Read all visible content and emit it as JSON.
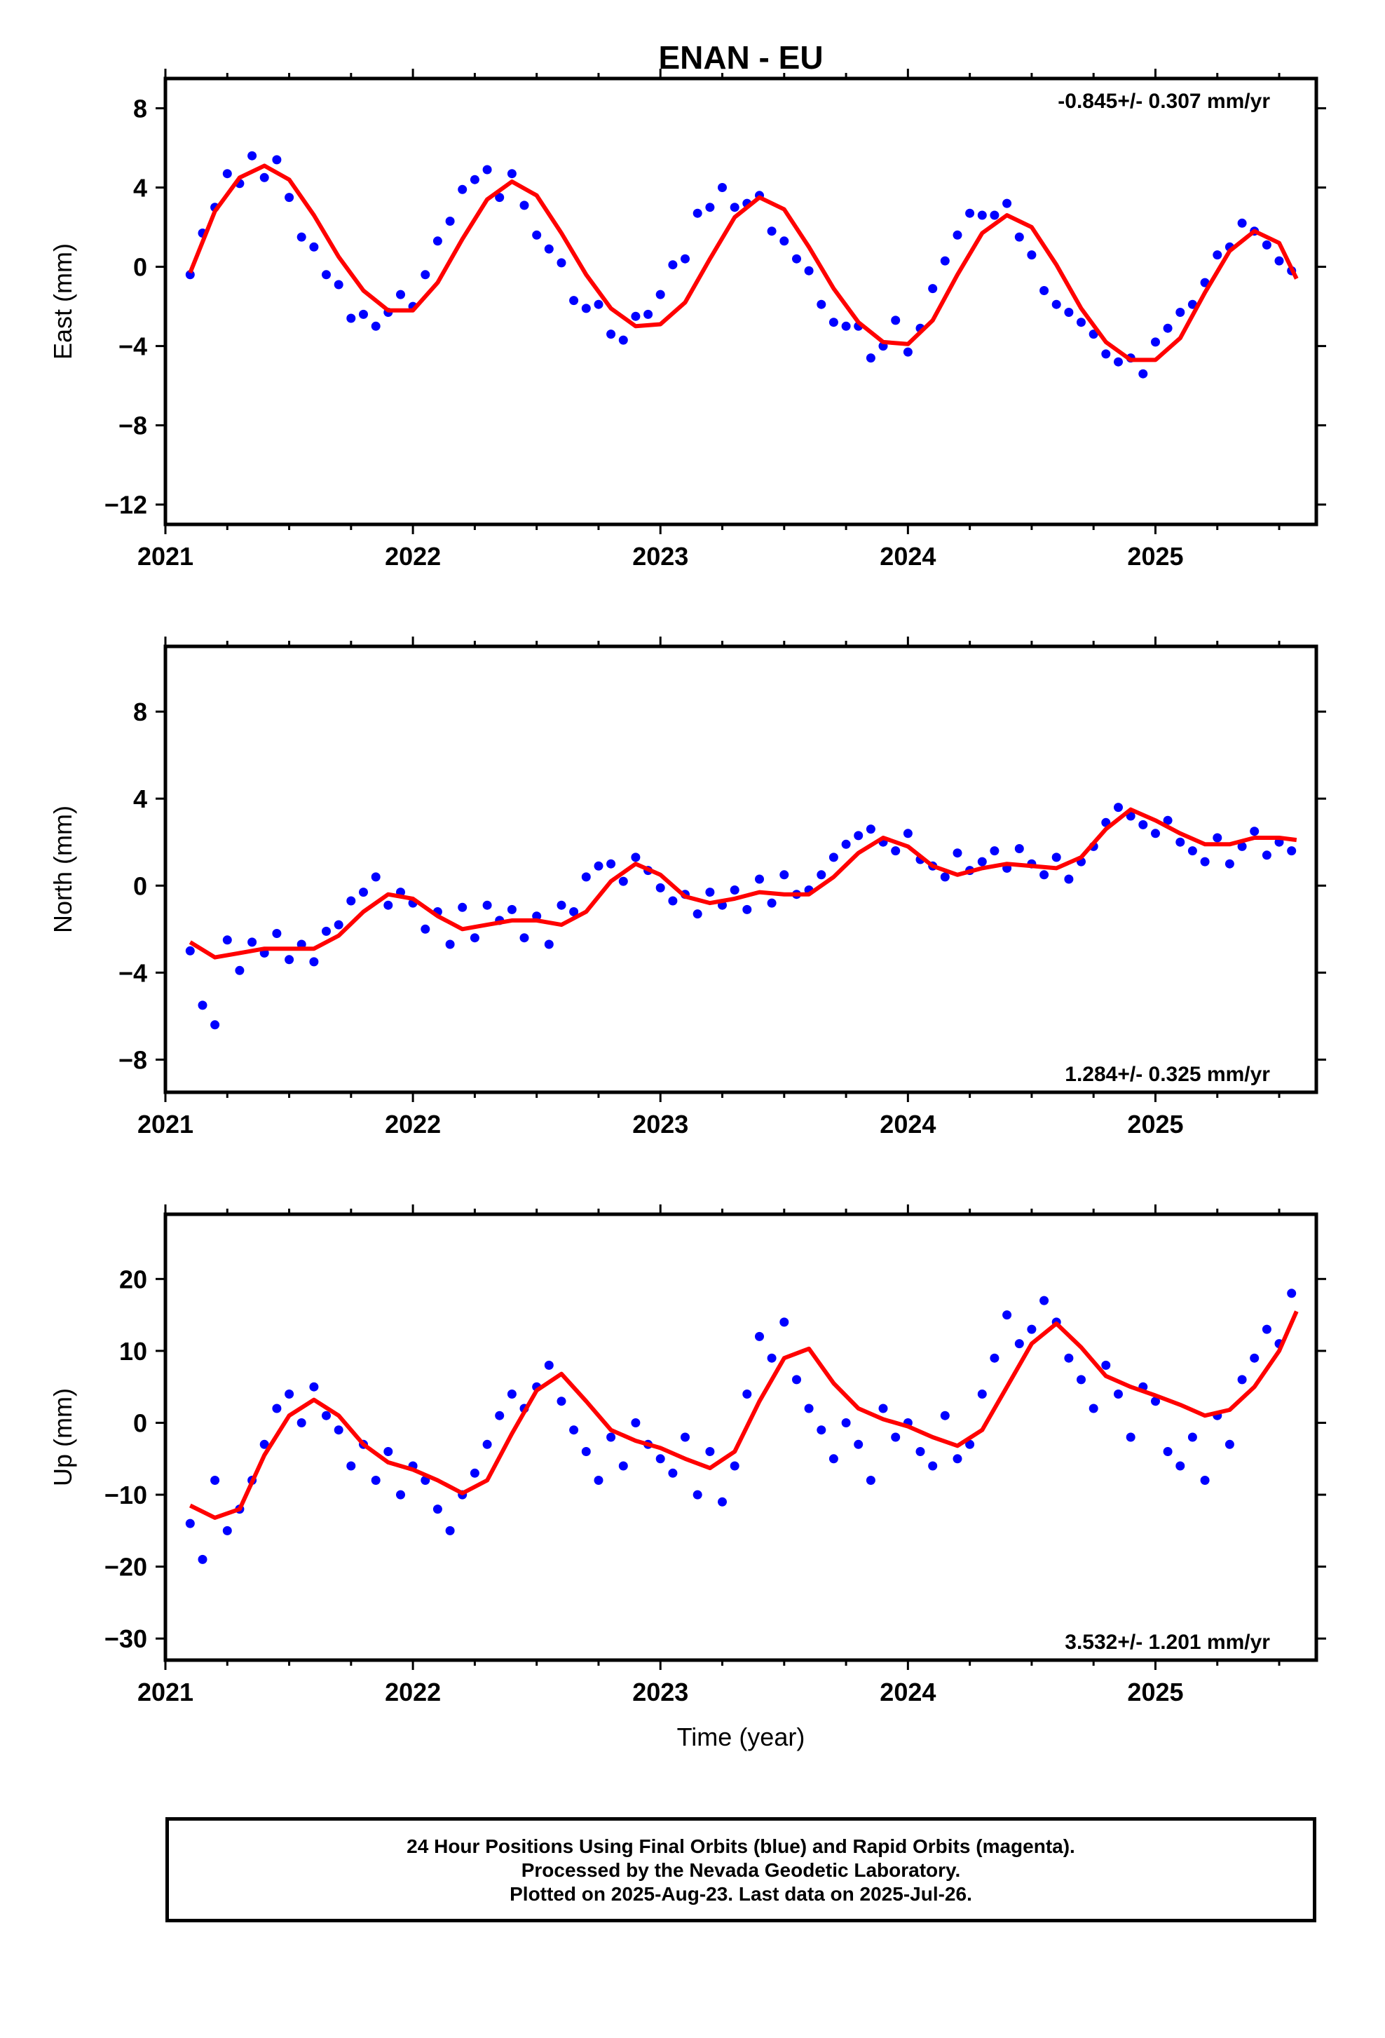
{
  "title": "ENAN - EU",
  "footer": {
    "line1": "24 Hour Positions Using Final Orbits (blue) and Rapid Orbits (magenta).",
    "line2": "Processed by the Nevada Geodetic Laboratory.",
    "line3": "Plotted on 2025-Aug-23. Last data on 2025-Jul-26."
  },
  "colors": {
    "final_orbits": "#0000ff",
    "model_fit": "#ff0000",
    "frame": "#000000"
  },
  "chart_data": [
    {
      "type": "scatter",
      "ylabel": "East (mm)",
      "rate_label": "-0.845+/- 0.307 mm/yr",
      "rate_placement": "top-right",
      "xlim": [
        2021.0,
        2025.65
      ],
      "ylim": [
        -13,
        9.5
      ],
      "xticks": [
        "2021",
        "2022",
        "2023",
        "2024",
        "2025"
      ],
      "yticks": [
        8,
        4,
        0,
        -4,
        -8,
        -12
      ],
      "ytick_labels": [
        "8",
        "4",
        "0",
        "−4",
        "−8",
        "−12"
      ],
      "grid": false,
      "series": [
        {
          "kind": "points",
          "x": [
            2021.1,
            2021.15,
            2021.2,
            2021.25,
            2021.3,
            2021.35,
            2021.4,
            2021.45,
            2021.5,
            2021.55,
            2021.6,
            2021.65,
            2021.7,
            2021.75,
            2021.8,
            2021.85,
            2021.9,
            2021.95,
            2022.0,
            2022.05,
            2022.1,
            2022.15,
            2022.2,
            2022.25,
            2022.3,
            2022.35,
            2022.4,
            2022.45,
            2022.5,
            2022.55,
            2022.6,
            2022.65,
            2022.7,
            2022.75,
            2022.8,
            2022.85,
            2022.9,
            2022.95,
            2023.0,
            2023.05,
            2023.1,
            2023.15,
            2023.2,
            2023.25,
            2023.3,
            2023.35,
            2023.4,
            2023.45,
            2023.5,
            2023.55,
            2023.6,
            2023.65,
            2023.7,
            2023.75,
            2023.8,
            2023.85,
            2023.9,
            2023.95,
            2024.0,
            2024.05,
            2024.1,
            2024.15,
            2024.2,
            2024.25,
            2024.3,
            2024.35,
            2024.4,
            2024.45,
            2024.5,
            2024.55,
            2024.6,
            2024.65,
            2024.7,
            2024.75,
            2024.8,
            2024.85,
            2024.9,
            2024.95,
            2025.0,
            2025.05,
            2025.1,
            2025.15,
            2025.2,
            2025.25,
            2025.3,
            2025.35,
            2025.4,
            2025.45,
            2025.5,
            2025.55
          ],
          "y": [
            -0.4,
            1.7,
            3.0,
            4.7,
            4.2,
            5.6,
            4.5,
            5.4,
            3.5,
            1.5,
            1.0,
            -0.4,
            -0.9,
            -2.6,
            -2.4,
            -3.0,
            -2.3,
            -1.4,
            -2.0,
            -0.4,
            1.3,
            2.3,
            3.9,
            4.4,
            4.9,
            3.5,
            4.7,
            3.1,
            1.6,
            0.9,
            0.2,
            -1.7,
            -2.1,
            -1.9,
            -3.4,
            -3.7,
            -2.5,
            -2.4,
            -1.4,
            0.1,
            0.4,
            2.7,
            3.0,
            4.0,
            3.0,
            3.2,
            3.6,
            1.8,
            1.3,
            0.4,
            -0.2,
            -1.9,
            -2.8,
            -3.0,
            -3.0,
            -4.6,
            -4.0,
            -2.7,
            -4.3,
            -3.1,
            -1.1,
            0.3,
            1.6,
            2.7,
            2.6,
            2.6,
            3.2,
            1.5,
            0.6,
            -1.2,
            -1.9,
            -2.3,
            -2.8,
            -3.4,
            -4.4,
            -4.8,
            -4.6,
            -5.4,
            -3.8,
            -3.1,
            -2.3,
            -1.9,
            -0.8,
            0.6,
            1.0,
            2.2,
            1.8,
            1.1,
            0.3,
            -0.2
          ]
        },
        {
          "kind": "fit",
          "x": [
            2021.1,
            2021.2,
            2021.3,
            2021.4,
            2021.5,
            2021.6,
            2021.7,
            2021.8,
            2021.9,
            2022.0,
            2022.1,
            2022.2,
            2022.3,
            2022.4,
            2022.5,
            2022.6,
            2022.7,
            2022.8,
            2022.9,
            2023.0,
            2023.1,
            2023.2,
            2023.3,
            2023.4,
            2023.5,
            2023.6,
            2023.7,
            2023.8,
            2023.9,
            2024.0,
            2024.1,
            2024.2,
            2024.3,
            2024.4,
            2024.5,
            2024.6,
            2024.7,
            2024.8,
            2024.9,
            2025.0,
            2025.1,
            2025.2,
            2025.3,
            2025.4,
            2025.5,
            2025.57
          ],
          "y": [
            -0.3,
            2.8,
            4.5,
            5.1,
            4.4,
            2.6,
            0.5,
            -1.2,
            -2.2,
            -2.2,
            -0.8,
            1.4,
            3.4,
            4.3,
            3.6,
            1.7,
            -0.4,
            -2.1,
            -3.0,
            -2.9,
            -1.8,
            0.4,
            2.5,
            3.5,
            2.9,
            1.0,
            -1.1,
            -2.8,
            -3.8,
            -3.9,
            -2.7,
            -0.4,
            1.7,
            2.6,
            2.0,
            0.1,
            -2.1,
            -3.8,
            -4.7,
            -4.7,
            -3.6,
            -1.3,
            0.8,
            1.8,
            1.2,
            -0.6
          ]
        }
      ]
    },
    {
      "type": "scatter",
      "ylabel": "North (mm)",
      "rate_label": "1.284+/- 0.325 mm/yr",
      "rate_placement": "bottom-right",
      "xlim": [
        2021.0,
        2025.65
      ],
      "ylim": [
        -9.5,
        11
      ],
      "xticks": [
        "2021",
        "2022",
        "2023",
        "2024",
        "2025"
      ],
      "yticks": [
        8,
        4,
        0,
        -4,
        -8
      ],
      "ytick_labels": [
        "8",
        "4",
        "0",
        "−4",
        "−8"
      ],
      "grid": false,
      "series": [
        {
          "kind": "points",
          "x": [
            2021.1,
            2021.15,
            2021.2,
            2021.25,
            2021.3,
            2021.35,
            2021.4,
            2021.45,
            2021.5,
            2021.55,
            2021.6,
            2021.65,
            2021.7,
            2021.75,
            2021.8,
            2021.85,
            2021.9,
            2021.95,
            2022.0,
            2022.05,
            2022.1,
            2022.15,
            2022.2,
            2022.25,
            2022.3,
            2022.35,
            2022.4,
            2022.45,
            2022.5,
            2022.55,
            2022.6,
            2022.65,
            2022.7,
            2022.75,
            2022.8,
            2022.85,
            2022.9,
            2022.95,
            2023.0,
            2023.05,
            2023.1,
            2023.15,
            2023.2,
            2023.25,
            2023.3,
            2023.35,
            2023.4,
            2023.45,
            2023.5,
            2023.55,
            2023.6,
            2023.65,
            2023.7,
            2023.75,
            2023.8,
            2023.85,
            2023.9,
            2023.95,
            2024.0,
            2024.05,
            2024.1,
            2024.15,
            2024.2,
            2024.25,
            2024.3,
            2024.35,
            2024.4,
            2024.45,
            2024.5,
            2024.55,
            2024.6,
            2024.65,
            2024.7,
            2024.75,
            2024.8,
            2024.85,
            2024.9,
            2024.95,
            2025.0,
            2025.05,
            2025.1,
            2025.15,
            2025.2,
            2025.25,
            2025.3,
            2025.35,
            2025.4,
            2025.45,
            2025.5,
            2025.55
          ],
          "y": [
            -3.0,
            -5.5,
            -6.4,
            -2.5,
            -3.9,
            -2.6,
            -3.1,
            -2.2,
            -3.4,
            -2.7,
            -3.5,
            -2.1,
            -1.8,
            -0.7,
            -0.3,
            0.4,
            -0.9,
            -0.3,
            -0.8,
            -2.0,
            -1.2,
            -2.7,
            -1.0,
            -2.4,
            -0.9,
            -1.6,
            -1.1,
            -2.4,
            -1.4,
            -2.7,
            -0.9,
            -1.2,
            0.4,
            0.9,
            1.0,
            0.2,
            1.3,
            0.7,
            -0.1,
            -0.7,
            -0.4,
            -1.3,
            -0.3,
            -0.9,
            -0.2,
            -1.1,
            0.3,
            -0.8,
            0.5,
            -0.4,
            -0.2,
            0.5,
            1.3,
            1.9,
            2.3,
            2.6,
            2.0,
            1.6,
            2.4,
            1.2,
            0.9,
            0.4,
            1.5,
            0.7,
            1.1,
            1.6,
            0.8,
            1.7,
            1.0,
            0.5,
            1.3,
            0.3,
            1.1,
            1.8,
            2.9,
            3.6,
            3.2,
            2.8,
            2.4,
            3.0,
            2.0,
            1.6,
            1.1,
            2.2,
            1.0,
            1.8,
            2.5,
            1.4,
            2.0,
            1.6
          ]
        },
        {
          "kind": "fit",
          "x": [
            2021.1,
            2021.2,
            2021.3,
            2021.4,
            2021.5,
            2021.6,
            2021.7,
            2021.8,
            2021.9,
            2022.0,
            2022.1,
            2022.2,
            2022.3,
            2022.4,
            2022.5,
            2022.6,
            2022.7,
            2022.8,
            2022.9,
            2023.0,
            2023.1,
            2023.2,
            2023.3,
            2023.4,
            2023.5,
            2023.6,
            2023.7,
            2023.8,
            2023.9,
            2024.0,
            2024.1,
            2024.2,
            2024.3,
            2024.4,
            2024.5,
            2024.6,
            2024.7,
            2024.8,
            2024.9,
            2025.0,
            2025.1,
            2025.2,
            2025.3,
            2025.4,
            2025.5,
            2025.57
          ],
          "y": [
            -2.6,
            -3.3,
            -3.1,
            -2.9,
            -2.9,
            -2.9,
            -2.3,
            -1.2,
            -0.4,
            -0.6,
            -1.4,
            -2.0,
            -1.8,
            -1.6,
            -1.6,
            -1.8,
            -1.2,
            0.2,
            1.0,
            0.5,
            -0.5,
            -0.8,
            -0.6,
            -0.3,
            -0.4,
            -0.4,
            0.4,
            1.5,
            2.2,
            1.8,
            0.9,
            0.5,
            0.8,
            1.0,
            0.9,
            0.8,
            1.3,
            2.6,
            3.5,
            3.0,
            2.4,
            1.9,
            1.9,
            2.2,
            2.2,
            2.1
          ]
        }
      ]
    },
    {
      "type": "scatter",
      "ylabel": "Up (mm)",
      "xlabel": "Time (year)",
      "rate_label": "3.532+/- 1.201 mm/yr",
      "rate_placement": "bottom-right",
      "xlim": [
        2021.0,
        2025.65
      ],
      "ylim": [
        -33,
        29
      ],
      "xticks": [
        "2021",
        "2022",
        "2023",
        "2024",
        "2025"
      ],
      "yticks": [
        20,
        10,
        0,
        -10,
        -20,
        -30
      ],
      "ytick_labels": [
        "20",
        "10",
        "0",
        "−10",
        "−20",
        "−30"
      ],
      "grid": false,
      "series": [
        {
          "kind": "points",
          "x": [
            2021.1,
            2021.15,
            2021.2,
            2021.25,
            2021.3,
            2021.35,
            2021.4,
            2021.45,
            2021.5,
            2021.55,
            2021.6,
            2021.65,
            2021.7,
            2021.75,
            2021.8,
            2021.85,
            2021.9,
            2021.95,
            2022.0,
            2022.05,
            2022.1,
            2022.15,
            2022.2,
            2022.25,
            2022.3,
            2022.35,
            2022.4,
            2022.45,
            2022.5,
            2022.55,
            2022.6,
            2022.65,
            2022.7,
            2022.75,
            2022.8,
            2022.85,
            2022.9,
            2022.95,
            2023.0,
            2023.05,
            2023.1,
            2023.15,
            2023.2,
            2023.25,
            2023.3,
            2023.35,
            2023.4,
            2023.45,
            2023.5,
            2023.55,
            2023.6,
            2023.65,
            2023.7,
            2023.75,
            2023.8,
            2023.85,
            2023.9,
            2023.95,
            2024.0,
            2024.05,
            2024.1,
            2024.15,
            2024.2,
            2024.25,
            2024.3,
            2024.35,
            2024.4,
            2024.45,
            2024.5,
            2024.55,
            2024.6,
            2024.65,
            2024.7,
            2024.75,
            2024.8,
            2024.85,
            2024.9,
            2024.95,
            2025.0,
            2025.05,
            2025.1,
            2025.15,
            2025.2,
            2025.25,
            2025.3,
            2025.35,
            2025.4,
            2025.45,
            2025.5,
            2025.55
          ],
          "y": [
            -14,
            -19,
            -8,
            -15,
            -12,
            -8,
            -3,
            2,
            4,
            0,
            5,
            1,
            -1,
            -6,
            -3,
            -8,
            -4,
            -10,
            -6,
            -8,
            -12,
            -15,
            -10,
            -7,
            -3,
            1,
            4,
            2,
            5,
            8,
            3,
            -1,
            -4,
            -8,
            -2,
            -6,
            0,
            -3,
            -5,
            -7,
            -2,
            -10,
            -4,
            -11,
            -6,
            4,
            12,
            9,
            14,
            6,
            2,
            -1,
            -5,
            0,
            -3,
            -8,
            2,
            -2,
            0,
            -4,
            -6,
            1,
            -5,
            -3,
            4,
            9,
            15,
            11,
            13,
            17,
            14,
            9,
            6,
            2,
            8,
            4,
            -2,
            5,
            3,
            -4,
            -6,
            -2,
            -8,
            1,
            -3,
            6,
            9,
            13,
            11,
            18
          ]
        },
        {
          "kind": "fit",
          "x": [
            2021.1,
            2021.2,
            2021.3,
            2021.4,
            2021.5,
            2021.6,
            2021.7,
            2021.8,
            2021.9,
            2022.0,
            2022.1,
            2022.2,
            2022.3,
            2022.4,
            2022.5,
            2022.6,
            2022.7,
            2022.8,
            2022.9,
            2023.0,
            2023.1,
            2023.2,
            2023.3,
            2023.4,
            2023.5,
            2023.6,
            2023.7,
            2023.8,
            2023.9,
            2024.0,
            2024.1,
            2024.2,
            2024.3,
            2024.4,
            2024.5,
            2024.6,
            2024.7,
            2024.8,
            2024.9,
            2025.0,
            2025.1,
            2025.2,
            2025.3,
            2025.4,
            2025.5,
            2025.57
          ],
          "y": [
            -11.5,
            -13.2,
            -12,
            -4.5,
            1,
            3.2,
            1,
            -3,
            -5.5,
            -6.5,
            -8,
            -9.8,
            -8,
            -1.5,
            4.5,
            6.8,
            3,
            -1,
            -2.5,
            -3.5,
            -5,
            -6.3,
            -4,
            3,
            9,
            10.3,
            5.5,
            2,
            0.5,
            -0.5,
            -2,
            -3.2,
            -1,
            5,
            11,
            13.8,
            10.5,
            6.5,
            5,
            3.8,
            2.5,
            1,
            1.8,
            5,
            10,
            15.5
          ]
        }
      ]
    }
  ]
}
